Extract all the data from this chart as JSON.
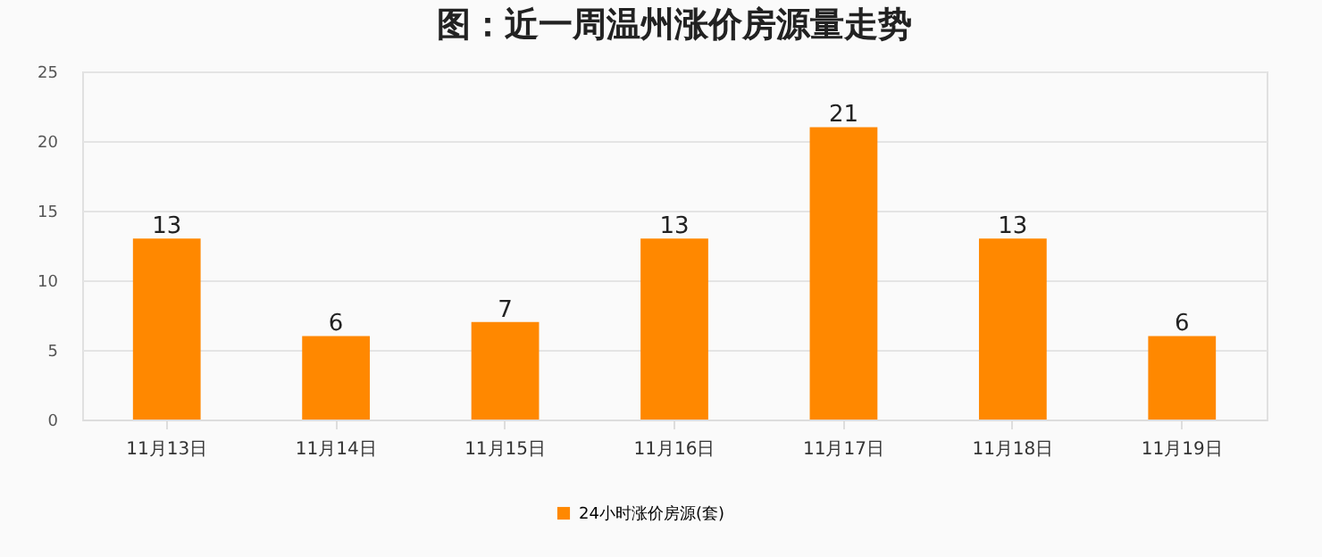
{
  "chart_data": {
    "type": "bar",
    "title": "图：近一周温州涨价房源量走势",
    "categories": [
      "11月13日",
      "11月14日",
      "11月15日",
      "11月16日",
      "11月17日",
      "11月18日",
      "11月19日"
    ],
    "series": [
      {
        "name": "24小时涨价房源(套)",
        "color": "#ff8800",
        "values": [
          13,
          6,
          7,
          13,
          21,
          13,
          6
        ]
      }
    ],
    "ylim": [
      0,
      25
    ],
    "yticks": [
      0,
      5,
      10,
      15,
      20,
      25
    ],
    "grid": "y",
    "legend": "bottom",
    "data_labels": true
  }
}
